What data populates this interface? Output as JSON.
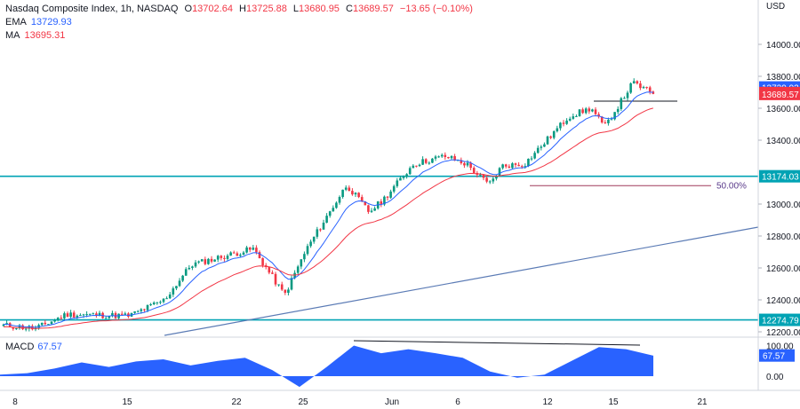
{
  "header": {
    "symbol": "Nasdaq Composite Index, 1h, NASDAQ",
    "o_label": "O",
    "o_value": "13702.64",
    "h_label": "H",
    "h_value": "13725.88",
    "l_label": "L",
    "l_value": "13680.95",
    "c_label": "C",
    "c_value": "13689.57",
    "change": "−13.65 (−0.10%)",
    "ema_label": "EMA",
    "ema_value": "13729.93",
    "ma_label": "MA",
    "ma_value": "13695.31"
  },
  "price_axis": {
    "currency": "USD",
    "ticks": [
      "14000.00",
      "13800.00",
      "13600.00",
      "13400.00",
      "13000.00",
      "12800.00",
      "12600.00",
      "12400.00",
      "12200.00"
    ],
    "tick_values": [
      14000,
      13800,
      13600,
      13400,
      13000,
      12800,
      12600,
      12400,
      12200
    ],
    "tags": [
      {
        "text": "13729.93",
        "value": 13729.93,
        "color": "#2962ff"
      },
      {
        "text": "13695.31",
        "value": 13695.31,
        "color": "#f23645"
      },
      {
        "text": "13689.57",
        "value": 13689.57,
        "color": "#f23645"
      },
      {
        "text": "13174.03",
        "value": 13174.03,
        "color": "#00a3b4"
      },
      {
        "text": "12274.79",
        "value": 12274.79,
        "color": "#00a3b4"
      }
    ]
  },
  "macd": {
    "label": "MACD",
    "value": "67.57",
    "ticks": [
      "100.00",
      "0.00"
    ],
    "tick_values": [
      100,
      0
    ],
    "tag": "67.57"
  },
  "time_axis": {
    "labels": [
      "8",
      "15",
      "22",
      "25",
      "Jun",
      "6",
      "12",
      "15",
      "21"
    ]
  },
  "annotations": {
    "fib_label": "50.00%"
  },
  "colors": {
    "up": "#089981",
    "down": "#f23645",
    "ema": "#2962ff",
    "ma": "#f23645",
    "horizontal": "#00a3b4",
    "trend": "#5b7bb5",
    "macd_fill": "#2962ff",
    "fib": "#a03a5a"
  },
  "chart_data": {
    "type": "candlestick",
    "title": "Nasdaq Composite Index, 1h, NASDAQ",
    "y_unit": "USD",
    "ylim": [
      12150,
      14150
    ],
    "last_close": 13689.57,
    "ema_last": 13729.93,
    "ma_last": 13695.31,
    "horizontal_levels": [
      13174.03,
      12274.79
    ],
    "resistance_segment": 13650,
    "fib_level": {
      "label": "50.00%",
      "value": 13115
    },
    "close_path": [
      {
        "x": "May 8",
        "y": 12240
      },
      {
        "x": "May 10",
        "y": 12220
      },
      {
        "x": "May 12",
        "y": 12310
      },
      {
        "x": "May 15",
        "y": 12300
      },
      {
        "x": "May 17",
        "y": 12400
      },
      {
        "x": "May 19",
        "y": 12620
      },
      {
        "x": "May 22",
        "y": 12720
      },
      {
        "x": "May 24",
        "y": 12430
      },
      {
        "x": "May 25",
        "y": 12720
      },
      {
        "x": "May 26",
        "y": 13120
      },
      {
        "x": "May 30",
        "y": 12950
      },
      {
        "x": "May 31",
        "y": 13020
      },
      {
        "x": "Jun 1",
        "y": 13250
      },
      {
        "x": "Jun 2",
        "y": 13300
      },
      {
        "x": "Jun 5",
        "y": 13250
      },
      {
        "x": "Jun 6",
        "y": 13120
      },
      {
        "x": "Jun 7",
        "y": 13240
      },
      {
        "x": "Jun 8",
        "y": 13250
      },
      {
        "x": "Jun 12",
        "y": 13550
      },
      {
        "x": "Jun 13",
        "y": 13600
      },
      {
        "x": "Jun 14",
        "y": 13480
      },
      {
        "x": "Jun 15",
        "y": 13760
      },
      {
        "x": "Jun 16",
        "y": 13690
      }
    ],
    "macd_ylim": [
      -40,
      120
    ],
    "macd_path": [
      5,
      10,
      25,
      45,
      30,
      48,
      55,
      35,
      50,
      60,
      20,
      -35,
      30,
      100,
      75,
      88,
      75,
      60,
      15,
      -5,
      5,
      50,
      95,
      88,
      67
    ]
  }
}
